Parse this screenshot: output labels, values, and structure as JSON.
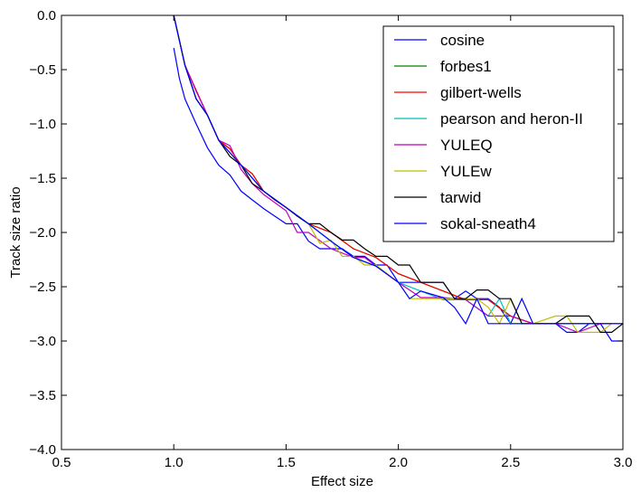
{
  "chart_data": {
    "type": "line",
    "title": "",
    "xlabel": "Effect size",
    "ylabel": "Track size ratio",
    "xlim": [
      0.5,
      3.0
    ],
    "ylim": [
      -4.0,
      0.0
    ],
    "xticks": [
      "0.5",
      "1.0",
      "1.5",
      "2.0",
      "2.5",
      "3.0"
    ],
    "yticks": [
      "0.0",
      "−0.5",
      "−1.0",
      "−1.5",
      "−2.0",
      "−2.5",
      "−3.0",
      "−3.5",
      "−4.0"
    ],
    "grid": false,
    "legend_position": "top-right",
    "series": [
      {
        "name": "cosine",
        "color": "#0000ff",
        "points": [
          [
            1.0,
            -0.3
          ],
          [
            1.025,
            -0.58
          ],
          [
            1.05,
            -0.77
          ],
          [
            1.1,
            -1.0
          ],
          [
            1.15,
            -1.22
          ],
          [
            1.2,
            -1.38
          ],
          [
            1.25,
            -1.47
          ],
          [
            1.3,
            -1.62
          ],
          [
            1.35,
            -1.7
          ],
          [
            1.4,
            -1.78
          ],
          [
            1.45,
            -1.85
          ],
          [
            1.5,
            -1.92
          ],
          [
            1.55,
            -1.92
          ],
          [
            1.6,
            -2.08
          ],
          [
            1.65,
            -2.15
          ],
          [
            1.7,
            -2.15
          ],
          [
            1.75,
            -2.15
          ],
          [
            1.8,
            -2.22
          ],
          [
            1.85,
            -2.22
          ],
          [
            1.9,
            -2.3
          ],
          [
            1.95,
            -2.3
          ],
          [
            2.0,
            -2.46
          ],
          [
            2.05,
            -2.46
          ],
          [
            2.1,
            -2.46
          ],
          [
            2.15,
            -2.46
          ],
          [
            2.2,
            -2.46
          ],
          [
            2.25,
            -2.61
          ],
          [
            2.3,
            -2.54
          ],
          [
            2.35,
            -2.61
          ],
          [
            2.4,
            -2.61
          ],
          [
            2.45,
            -2.69
          ],
          [
            2.5,
            -2.84
          ],
          [
            2.55,
            -2.61
          ],
          [
            2.6,
            -2.84
          ],
          [
            2.65,
            -2.84
          ],
          [
            2.7,
            -2.84
          ],
          [
            2.75,
            -2.92
          ],
          [
            2.8,
            -2.92
          ],
          [
            2.85,
            -2.84
          ],
          [
            2.9,
            -2.84
          ],
          [
            2.95,
            -3.0
          ],
          [
            3.0,
            -3.0
          ]
        ]
      },
      {
        "name": "forbes1",
        "color": "#008000",
        "points": [
          [
            1.0,
            0.0
          ],
          [
            1.05,
            -0.46
          ],
          [
            1.1,
            -0.77
          ],
          [
            1.15,
            -0.92
          ],
          [
            1.2,
            -1.15
          ],
          [
            1.25,
            -1.23
          ],
          [
            1.3,
            -1.38
          ],
          [
            1.35,
            -1.46
          ],
          [
            1.4,
            -1.62
          ],
          [
            1.5,
            -1.77
          ],
          [
            1.6,
            -1.92
          ],
          [
            1.7,
            -2.0
          ],
          [
            1.8,
            -2.15
          ],
          [
            1.9,
            -2.23
          ],
          [
            2.0,
            -2.38
          ],
          [
            2.1,
            -2.46
          ],
          [
            2.2,
            -2.54
          ],
          [
            2.3,
            -2.62
          ],
          [
            2.4,
            -2.62
          ],
          [
            2.5,
            -2.77
          ],
          [
            2.6,
            -2.84
          ],
          [
            2.7,
            -2.84
          ],
          [
            2.8,
            -2.84
          ],
          [
            2.9,
            -2.84
          ],
          [
            3.0,
            -2.84
          ]
        ]
      },
      {
        "name": "gilbert-wells",
        "color": "#ff0000",
        "points": [
          [
            1.0,
            0.0
          ],
          [
            1.05,
            -0.46
          ],
          [
            1.1,
            -0.69
          ],
          [
            1.15,
            -0.92
          ],
          [
            1.2,
            -1.15
          ],
          [
            1.25,
            -1.23
          ],
          [
            1.3,
            -1.38
          ],
          [
            1.35,
            -1.46
          ],
          [
            1.4,
            -1.62
          ],
          [
            1.5,
            -1.77
          ],
          [
            1.6,
            -1.92
          ],
          [
            1.7,
            -2.0
          ],
          [
            1.8,
            -2.15
          ],
          [
            1.9,
            -2.23
          ],
          [
            2.0,
            -2.38
          ],
          [
            2.1,
            -2.46
          ],
          [
            2.2,
            -2.54
          ],
          [
            2.3,
            -2.62
          ],
          [
            2.4,
            -2.62
          ],
          [
            2.5,
            -2.77
          ],
          [
            2.6,
            -2.84
          ],
          [
            2.7,
            -2.84
          ],
          [
            2.8,
            -2.84
          ],
          [
            2.9,
            -2.84
          ],
          [
            3.0,
            -2.84
          ]
        ]
      },
      {
        "name": "pearson and heron-II",
        "color": "#00bfbf",
        "points": [
          [
            1.0,
            0.0
          ],
          [
            1.05,
            -0.46
          ],
          [
            1.1,
            -0.77
          ],
          [
            1.15,
            -0.92
          ],
          [
            1.2,
            -1.15
          ],
          [
            1.3,
            -1.38
          ],
          [
            1.4,
            -1.62
          ],
          [
            1.5,
            -1.77
          ],
          [
            1.6,
            -1.92
          ],
          [
            1.7,
            -2.08
          ],
          [
            1.8,
            -2.23
          ],
          [
            1.9,
            -2.31
          ],
          [
            2.0,
            -2.46
          ],
          [
            2.1,
            -2.54
          ],
          [
            2.2,
            -2.62
          ],
          [
            2.3,
            -2.62
          ],
          [
            2.4,
            -2.77
          ],
          [
            2.45,
            -2.61
          ],
          [
            2.5,
            -2.84
          ],
          [
            2.6,
            -2.84
          ],
          [
            2.7,
            -2.84
          ],
          [
            2.8,
            -2.84
          ],
          [
            2.9,
            -2.84
          ],
          [
            3.0,
            -2.84
          ]
        ]
      },
      {
        "name": "YULEQ",
        "color": "#bf00bf",
        "points": [
          [
            1.0,
            0.0
          ],
          [
            1.05,
            -0.46
          ],
          [
            1.1,
            -0.7
          ],
          [
            1.15,
            -0.92
          ],
          [
            1.2,
            -1.15
          ],
          [
            1.25,
            -1.2
          ],
          [
            1.3,
            -1.42
          ],
          [
            1.35,
            -1.55
          ],
          [
            1.4,
            -1.65
          ],
          [
            1.5,
            -1.8
          ],
          [
            1.55,
            -2.0
          ],
          [
            1.6,
            -2.0
          ],
          [
            1.7,
            -2.15
          ],
          [
            1.8,
            -2.23
          ],
          [
            1.85,
            -2.23
          ],
          [
            1.9,
            -2.31
          ],
          [
            2.0,
            -2.46
          ],
          [
            2.1,
            -2.6
          ],
          [
            2.2,
            -2.6
          ],
          [
            2.3,
            -2.62
          ],
          [
            2.4,
            -2.77
          ],
          [
            2.5,
            -2.77
          ],
          [
            2.6,
            -2.84
          ],
          [
            2.7,
            -2.84
          ],
          [
            2.8,
            -2.92
          ],
          [
            2.9,
            -2.84
          ],
          [
            3.0,
            -2.84
          ]
        ]
      },
      {
        "name": "YULEw",
        "color": "#bfbf00",
        "points": [
          [
            1.0,
            0.0
          ],
          [
            1.05,
            -0.46
          ],
          [
            1.1,
            -0.77
          ],
          [
            1.15,
            -0.92
          ],
          [
            1.2,
            -1.15
          ],
          [
            1.3,
            -1.38
          ],
          [
            1.4,
            -1.62
          ],
          [
            1.5,
            -1.77
          ],
          [
            1.6,
            -1.92
          ],
          [
            1.65,
            -2.1
          ],
          [
            1.7,
            -2.07
          ],
          [
            1.75,
            -2.22
          ],
          [
            1.8,
            -2.22
          ],
          [
            1.85,
            -2.3
          ],
          [
            1.9,
            -2.3
          ],
          [
            2.0,
            -2.46
          ],
          [
            2.05,
            -2.61
          ],
          [
            2.1,
            -2.61
          ],
          [
            2.2,
            -2.61
          ],
          [
            2.3,
            -2.61
          ],
          [
            2.35,
            -2.61
          ],
          [
            2.4,
            -2.69
          ],
          [
            2.45,
            -2.84
          ],
          [
            2.5,
            -2.61
          ],
          [
            2.55,
            -2.84
          ],
          [
            2.6,
            -2.84
          ],
          [
            2.7,
            -2.77
          ],
          [
            2.75,
            -2.77
          ],
          [
            2.8,
            -2.92
          ],
          [
            2.85,
            -2.92
          ],
          [
            2.9,
            -2.92
          ],
          [
            2.95,
            -2.84
          ],
          [
            3.0,
            -2.84
          ]
        ]
      },
      {
        "name": "tarwid",
        "color": "#000000",
        "points": [
          [
            1.0,
            0.0
          ],
          [
            1.05,
            -0.46
          ],
          [
            1.1,
            -0.77
          ],
          [
            1.15,
            -0.92
          ],
          [
            1.2,
            -1.15
          ],
          [
            1.25,
            -1.3
          ],
          [
            1.3,
            -1.38
          ],
          [
            1.35,
            -1.55
          ],
          [
            1.4,
            -1.62
          ],
          [
            1.45,
            -1.7
          ],
          [
            1.5,
            -1.77
          ],
          [
            1.55,
            -1.85
          ],
          [
            1.6,
            -1.92
          ],
          [
            1.65,
            -1.92
          ],
          [
            1.7,
            -2.0
          ],
          [
            1.75,
            -2.07
          ],
          [
            1.8,
            -2.07
          ],
          [
            1.85,
            -2.15
          ],
          [
            1.9,
            -2.22
          ],
          [
            1.95,
            -2.22
          ],
          [
            2.0,
            -2.3
          ],
          [
            2.05,
            -2.3
          ],
          [
            2.1,
            -2.46
          ],
          [
            2.15,
            -2.46
          ],
          [
            2.2,
            -2.46
          ],
          [
            2.25,
            -2.61
          ],
          [
            2.3,
            -2.61
          ],
          [
            2.35,
            -2.53
          ],
          [
            2.4,
            -2.53
          ],
          [
            2.45,
            -2.61
          ],
          [
            2.5,
            -2.61
          ],
          [
            2.55,
            -2.84
          ],
          [
            2.6,
            -2.84
          ],
          [
            2.65,
            -2.84
          ],
          [
            2.7,
            -2.84
          ],
          [
            2.75,
            -2.77
          ],
          [
            2.8,
            -2.77
          ],
          [
            2.85,
            -2.77
          ],
          [
            2.9,
            -2.92
          ],
          [
            2.95,
            -2.92
          ],
          [
            3.0,
            -2.84
          ]
        ]
      },
      {
        "name": "sokal-sneath4",
        "color": "#0000ff",
        "points": [
          [
            1.0,
            0.0
          ],
          [
            1.05,
            -0.46
          ],
          [
            1.1,
            -0.77
          ],
          [
            1.15,
            -0.92
          ],
          [
            1.2,
            -1.15
          ],
          [
            1.3,
            -1.38
          ],
          [
            1.4,
            -1.62
          ],
          [
            1.5,
            -1.77
          ],
          [
            1.6,
            -1.92
          ],
          [
            1.7,
            -2.08
          ],
          [
            1.8,
            -2.23
          ],
          [
            1.9,
            -2.31
          ],
          [
            2.0,
            -2.46
          ],
          [
            2.05,
            -2.61
          ],
          [
            2.1,
            -2.54
          ],
          [
            2.2,
            -2.6
          ],
          [
            2.25,
            -2.69
          ],
          [
            2.3,
            -2.84
          ],
          [
            2.35,
            -2.61
          ],
          [
            2.4,
            -2.84
          ],
          [
            2.45,
            -2.84
          ],
          [
            2.5,
            -2.84
          ],
          [
            2.55,
            -2.84
          ],
          [
            2.6,
            -2.84
          ],
          [
            2.7,
            -2.84
          ],
          [
            2.8,
            -2.84
          ],
          [
            2.9,
            -2.84
          ],
          [
            3.0,
            -2.84
          ]
        ]
      }
    ]
  }
}
